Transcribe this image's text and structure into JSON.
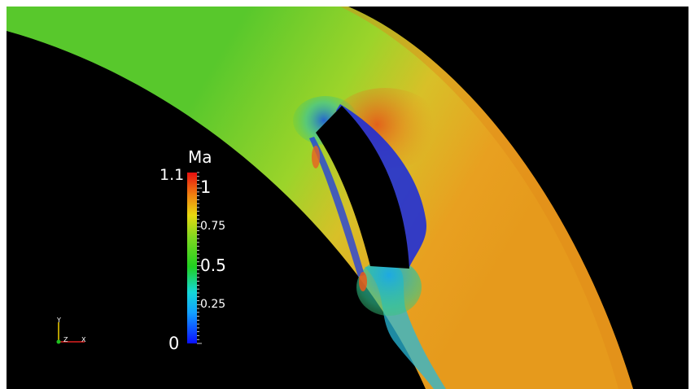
{
  "colorbar": {
    "title": "Ma",
    "max_label": "1.1",
    "min_label": "0",
    "ticks": [
      {
        "label": "1",
        "value": 1.0,
        "size": 21
      },
      {
        "label": "0.75",
        "value": 0.75,
        "size": 14
      },
      {
        "label": "0.5",
        "value": 0.5,
        "size": 20
      },
      {
        "label": "0.25",
        "value": 0.25,
        "size": 14
      }
    ],
    "range": [
      0,
      1.1
    ],
    "colors": [
      "#0a10ff",
      "#12c8ff",
      "#20d020",
      "#b8e020",
      "#e8c010",
      "#f07010",
      "#e81010"
    ]
  },
  "axes_triad": {
    "y_label": "Y",
    "z_label": "Z",
    "x_label": "X",
    "y_color": "#f0d000",
    "z_color": "#20c020",
    "x_color": "#e02020"
  },
  "field_colors": {
    "background": "#000000",
    "inner_flow": "#5cc830",
    "outer_flow": "#e8a020",
    "mid_flow": "#c8d428",
    "separation": "#1020e0"
  }
}
